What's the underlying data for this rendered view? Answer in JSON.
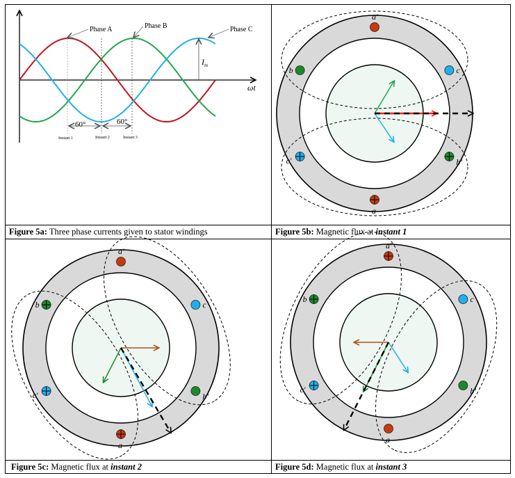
{
  "colors": {
    "phase_a": "#c0141a",
    "phase_b": "#1fa84a",
    "phase_c": "#1eb0ea",
    "conductor_a": "#c83a0c",
    "conductor_b": "#1a8a2a",
    "conductor_c": "#1eb0ee",
    "ring": "#d9d9d9",
    "rotor": "#eef7f1",
    "resultant_5b": "#ff1a1a",
    "resultant_other": "#b0521a"
  },
  "fig5a": {
    "phase_a_label": "Phase A",
    "phase_b_label": "Phase B",
    "phase_c_label": "Phase C",
    "axis_label": "ωt",
    "amplitude_label": "I",
    "amplitude_sub": "m",
    "angle_1": "60°",
    "angle_2": "60°",
    "instants": [
      "Instant 1",
      "Instant 2",
      "Instant 3"
    ],
    "caption_bold": "Figure 5a:",
    "caption_text": " Three phase currents given to stator windings",
    "caption_italic": ""
  },
  "fig5b": {
    "caption_bold": "Figure 5b:",
    "caption_text": " Magnetic flux at ",
    "caption_italic": "instant 1",
    "conductors": [
      {
        "label": "a'",
        "symbol": "dot"
      },
      {
        "label": "c",
        "symbol": "dot"
      },
      {
        "label": "b",
        "symbol": "dot"
      },
      {
        "label": "c'",
        "symbol": "cross"
      },
      {
        "label": "a",
        "symbol": "cross"
      },
      {
        "label": "b'",
        "symbol": "cross"
      }
    ]
  },
  "fig5c": {
    "caption_bold": "Figure 5c:",
    "caption_text": " Magnetic flux at ",
    "caption_italic": "instant 2",
    "conductors": [
      {
        "label": "a'",
        "symbol": "dot"
      },
      {
        "label": "c",
        "symbol": "dot"
      },
      {
        "label": "b",
        "symbol": "cross"
      },
      {
        "label": "c'",
        "symbol": "cross"
      },
      {
        "label": "a",
        "symbol": "cross"
      },
      {
        "label": "b'",
        "symbol": "dot"
      }
    ]
  },
  "fig5d": {
    "caption_bold": "Figure 5d:",
    "caption_text": " Magnetic flux at ",
    "caption_italic": "instant 3",
    "conductors": [
      {
        "label": "a'",
        "symbol": "cross"
      },
      {
        "label": "c",
        "symbol": "dot"
      },
      {
        "label": "b",
        "symbol": "cross"
      },
      {
        "label": "c'",
        "symbol": "cross"
      },
      {
        "label": "a",
        "symbol": "dot"
      },
      {
        "label": "b'",
        "symbol": "dot"
      }
    ]
  }
}
